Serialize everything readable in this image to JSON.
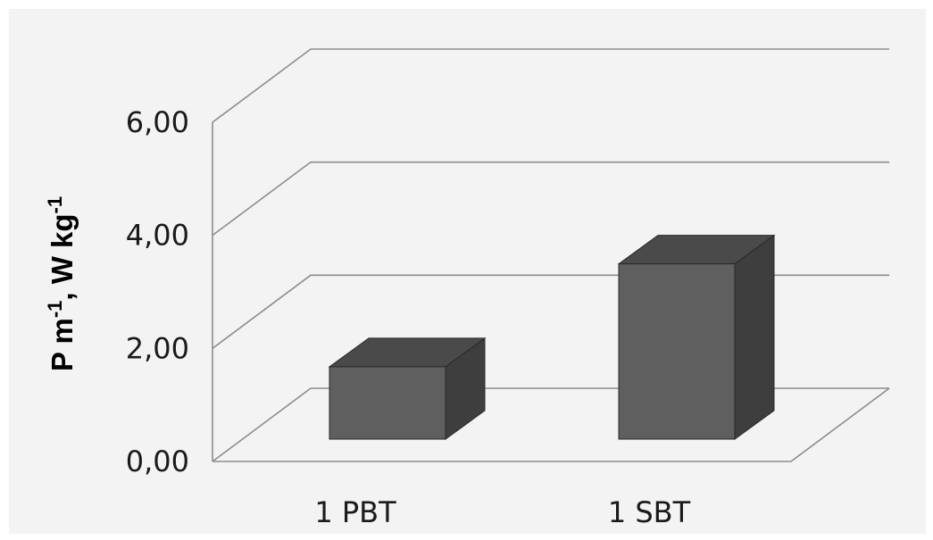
{
  "chart_data": {
    "type": "bar",
    "style": "3d",
    "categories": [
      "1 PBT",
      "1 SBT"
    ],
    "values": [
      1.28,
      3.1
    ],
    "ylabel_parts": [
      {
        "text": "P m",
        "sup": false
      },
      {
        "text": "-1",
        "sup": true
      },
      {
        "text": ", W kg",
        "sup": false
      },
      {
        "text": "-1",
        "sup": true
      }
    ],
    "ylim": [
      0,
      6
    ],
    "yticks": [
      0,
      2,
      4,
      6
    ],
    "ytick_labels": [
      "0,00",
      "2,00",
      "4,00",
      "6,00"
    ],
    "grid": true,
    "legend": "none"
  },
  "colors": {
    "bar_front": "#5f5f5f",
    "bar_top": "#4a4a4a",
    "bar_side": "#3e3e3e",
    "bar_edge": "#2a2a2a",
    "grid": "#8c8c8c",
    "plot_background": "#f3f3f3"
  }
}
